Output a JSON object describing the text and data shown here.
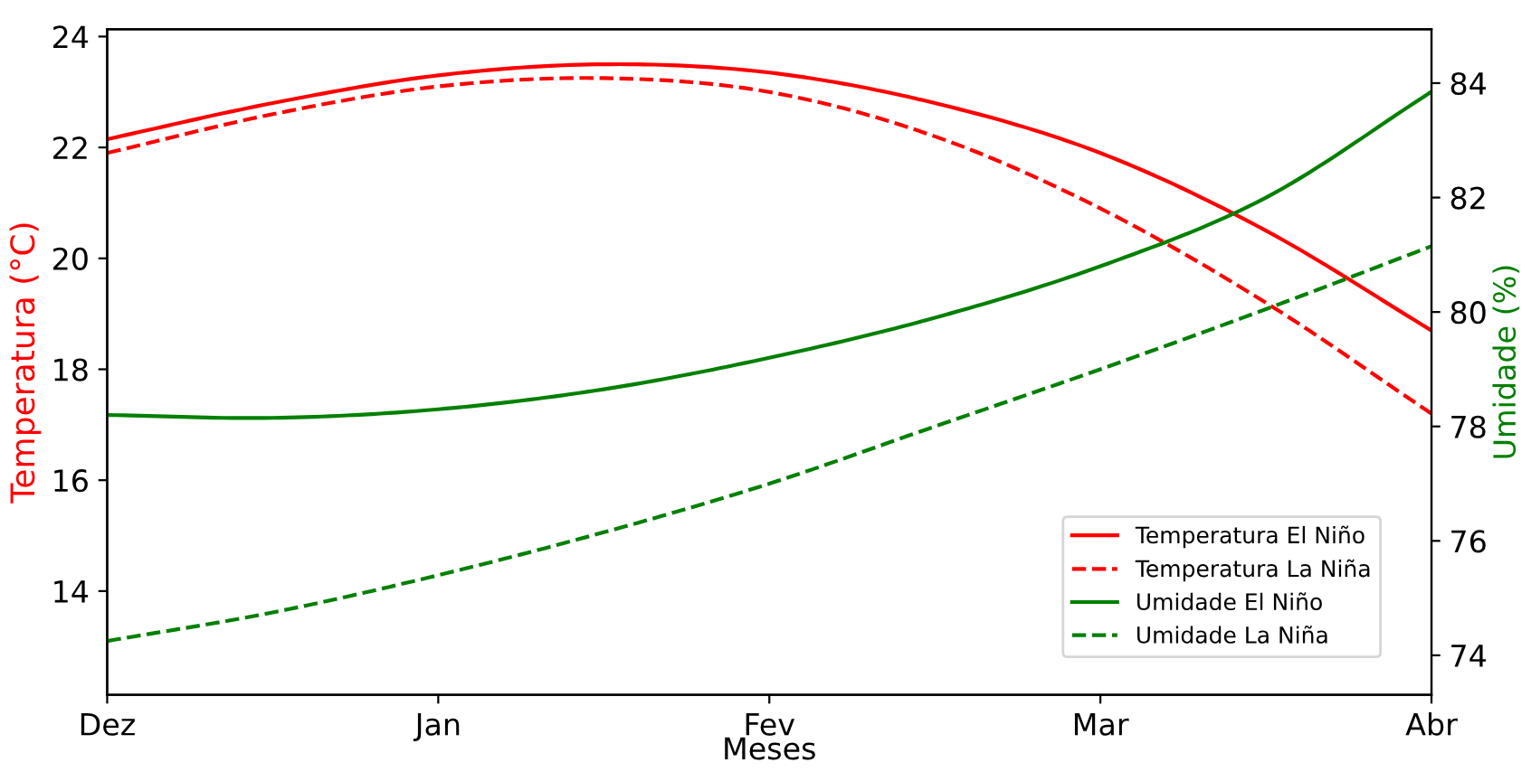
{
  "chart_data": {
    "type": "line",
    "xlabel": "Meses",
    "ylabel": "Temperatura (°C)",
    "y2label": "Umidade (%)",
    "categories": [
      "Dez",
      null,
      "Jan",
      null,
      "Fev",
      null,
      "Mar",
      null,
      "Abr"
    ],
    "ylim": [
      12.13,
      24.13
    ],
    "yticks": [
      14,
      16,
      18,
      20,
      22,
      24
    ],
    "y2lim": [
      73.31,
      84.94
    ],
    "y2ticks": [
      74,
      76,
      78,
      80,
      82,
      84
    ],
    "series": [
      {
        "name": "Temperatura El Niño",
        "color": "#ff0000",
        "line_style": "solid",
        "values": [
          22.15,
          22.8,
          23.3,
          23.5,
          23.35,
          22.8,
          21.9,
          20.5,
          18.7
        ]
      },
      {
        "name": "Temperatura La Niña",
        "color": "#ff0000",
        "line_style": "dashed",
        "values": [
          21.9,
          22.6,
          23.1,
          23.25,
          23.0,
          22.2,
          20.9,
          19.2,
          17.2
        ]
      },
      {
        "name": "Umidade El Niño",
        "color": "#008000",
        "line_style": "solid",
        "axis": "y2",
        "values": [
          78.2,
          78.15,
          78.3,
          78.65,
          79.2,
          79.9,
          80.8,
          82.0,
          83.85
        ]
      },
      {
        "name": "Umidade La Niña",
        "color": "#008000",
        "line_style": "dashed",
        "axis": "y2",
        "values": [
          74.25,
          74.75,
          75.4,
          76.15,
          77.0,
          78.0,
          79.0,
          80.05,
          81.15
        ]
      }
    ],
    "legend": "bottom right",
    "grid": false
  }
}
